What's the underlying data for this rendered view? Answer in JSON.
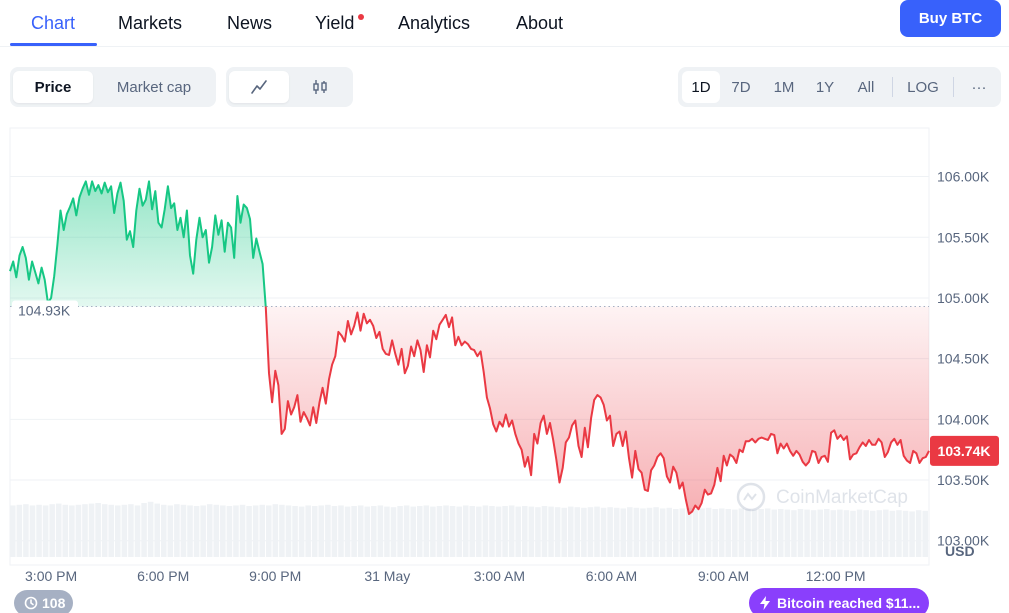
{
  "nav": {
    "tabs": [
      {
        "label": "Chart"
      },
      {
        "label": "Markets"
      },
      {
        "label": "News"
      },
      {
        "label": "Yield"
      },
      {
        "label": "Analytics"
      },
      {
        "label": "About"
      }
    ],
    "buy_label": "Buy BTC"
  },
  "controls": {
    "metric": [
      "Price",
      "Market cap"
    ],
    "ranges": [
      "1D",
      "7D",
      "1M",
      "1Y",
      "All"
    ],
    "log_label": "LOG",
    "more_label": "···"
  },
  "colors": {
    "accent": "#3861fb",
    "up": "#16c784",
    "down": "#ea3943",
    "nav_dot": "#ea3943",
    "news_pill": "#8a3ffc"
  },
  "chart_data": {
    "type": "area",
    "currency": "USD",
    "ylim": [
      102800,
      106400
    ],
    "yticks": [
      "106.00K",
      "105.50K",
      "105.00K",
      "104.50K",
      "104.00K",
      "103.50K",
      "103.00K"
    ],
    "ytick_values": [
      106000,
      105500,
      105000,
      104500,
      104000,
      103500,
      103000
    ],
    "xticks": [
      "3:00 PM",
      "6:00 PM",
      "9:00 PM",
      "31 May",
      "3:00 AM",
      "6:00 AM",
      "9:00 AM",
      "12:00 PM"
    ],
    "xtick_hours": [
      15,
      18,
      21,
      24,
      27,
      30,
      33,
      36
    ],
    "x_range_hours": [
      13.9,
      38.5
    ],
    "baseline": 104930,
    "baseline_label": "104.93K",
    "current_label": "103.74K",
    "current_value": 103740,
    "grid": true,
    "watermark": "CoinMarketCap",
    "series": [
      {
        "values": [
          105220,
          105300,
          105170,
          105350,
          105420,
          105330,
          105150,
          105300,
          105210,
          105120,
          105250,
          105150,
          104960,
          105000,
          105180,
          105440,
          105720,
          105560,
          105690,
          105750,
          105820,
          105680,
          105830,
          105900,
          105960,
          105850,
          105960,
          105880,
          105930,
          105860,
          105950,
          105870,
          105920,
          105700,
          105860,
          105950,
          105800,
          105480,
          105550,
          105420,
          105720,
          105900,
          105760,
          105810,
          105960,
          105730,
          105880,
          105620,
          105580,
          105730,
          105920,
          105740,
          105780,
          105560,
          105660,
          105500,
          105720,
          105350,
          105200,
          105480,
          105660,
          105500,
          105560,
          105290,
          105420,
          105680,
          105520,
          105640,
          105380,
          105620,
          105580,
          105330,
          105840,
          105620,
          105770,
          105740,
          105650,
          105330,
          105490,
          105380,
          105280,
          104920,
          104380,
          104140,
          104400,
          104280,
          103880,
          103920,
          104150,
          104040,
          104100,
          104200,
          103980,
          104060,
          104010,
          103950,
          104100,
          103970,
          104140,
          104260,
          104130,
          104330,
          104450,
          104520,
          104720,
          104690,
          104640,
          104810,
          104700,
          104770,
          104880,
          104730,
          104870,
          104790,
          104820,
          104770,
          104670,
          104720,
          104580,
          104540,
          104530,
          104650,
          104540,
          104450,
          104580,
          104380,
          104440,
          104600,
          104520,
          104650,
          104570,
          104390,
          104610,
          104510,
          104730,
          104660,
          104780,
          104820,
          104860,
          104760,
          104840,
          104610,
          104680,
          104610,
          104640,
          104620,
          104580,
          104570,
          104520,
          104560,
          104390,
          104180,
          104090,
          103960,
          103900,
          103980,
          103940,
          104040,
          103940,
          103990,
          103880,
          103800,
          103750,
          103610,
          103690,
          103540,
          103880,
          103800,
          103970,
          104030,
          103880,
          103970,
          103830,
          103670,
          103480,
          103600,
          103810,
          103850,
          103950,
          103990,
          103780,
          103690,
          103930,
          103770,
          104010,
          104160,
          104200,
          104180,
          104120,
          103990,
          104030,
          103780,
          103880,
          103900,
          103780,
          103900,
          103680,
          103520,
          103740,
          103590,
          103560,
          103420,
          103410,
          103580,
          103620,
          103690,
          103720,
          103680,
          103530,
          103480,
          103610,
          103560,
          103430,
          103480,
          103340,
          103220,
          103240,
          103290,
          103260,
          103310,
          103420,
          103380,
          103390,
          103460,
          103600,
          103490,
          103700,
          103620,
          103710,
          103690,
          103640,
          103750,
          103730,
          103820,
          103820,
          103840,
          103810,
          103840,
          103850,
          103840,
          103830,
          103880,
          103870,
          103720,
          103800,
          103760,
          103800,
          103740,
          103700,
          103740,
          103710,
          103650,
          103620,
          103650,
          103740,
          103730,
          103640,
          103690,
          103700,
          103650,
          103890,
          103910,
          103840,
          103870,
          103830,
          103860,
          103670,
          103710,
          103720,
          103770,
          103810,
          103780,
          103830,
          103790,
          103790,
          103840,
          103810,
          103690,
          103730,
          103810,
          103840,
          103790,
          103830,
          103700,
          103660,
          103640,
          103740,
          103720,
          103640,
          103680,
          103690,
          103740
        ]
      }
    ],
    "volume": {
      "type": "bar",
      "values": [
        0.86,
        0.87,
        0.88,
        0.86,
        0.87,
        0.86,
        0.88,
        0.89,
        0.87,
        0.86,
        0.87,
        0.88,
        0.89,
        0.9,
        0.88,
        0.87,
        0.86,
        0.87,
        0.88,
        0.86,
        0.9,
        0.92,
        0.89,
        0.87,
        0.86,
        0.88,
        0.87,
        0.86,
        0.85,
        0.86,
        0.88,
        0.87,
        0.86,
        0.85,
        0.86,
        0.87,
        0.85,
        0.86,
        0.87,
        0.86,
        0.88,
        0.87,
        0.86,
        0.85,
        0.84,
        0.86,
        0.85,
        0.86,
        0.87,
        0.85,
        0.86,
        0.84,
        0.85,
        0.86,
        0.84,
        0.85,
        0.86,
        0.84,
        0.83,
        0.85,
        0.86,
        0.84,
        0.85,
        0.86,
        0.84,
        0.85,
        0.86,
        0.85,
        0.84,
        0.86,
        0.85,
        0.84,
        0.86,
        0.85,
        0.84,
        0.85,
        0.86,
        0.84,
        0.85,
        0.84,
        0.83,
        0.85,
        0.84,
        0.83,
        0.82,
        0.84,
        0.83,
        0.82,
        0.83,
        0.84,
        0.82,
        0.83,
        0.82,
        0.81,
        0.83,
        0.82,
        0.81,
        0.82,
        0.83,
        0.81,
        0.82,
        0.8,
        0.81,
        0.82,
        0.8,
        0.81,
        0.82,
        0.8,
        0.81,
        0.8,
        0.79,
        0.81,
        0.8,
        0.79,
        0.8,
        0.81,
        0.79,
        0.8,
        0.79,
        0.78,
        0.8,
        0.79,
        0.78,
        0.79,
        0.8,
        0.78,
        0.79,
        0.78,
        0.77,
        0.79,
        0.78,
        0.77,
        0.78,
        0.79,
        0.77,
        0.78,
        0.77,
        0.76,
        0.78,
        0.77
      ]
    }
  },
  "footer": {
    "count": "108",
    "news": "Bitcoin reached $11..."
  }
}
